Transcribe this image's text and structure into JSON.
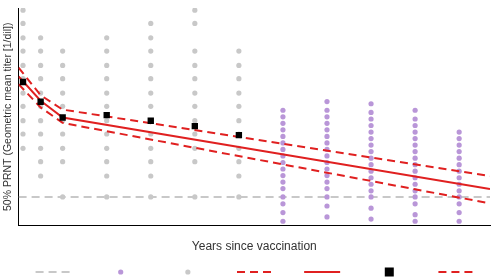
{
  "chart_data": {
    "type": "scatter",
    "x_label": "Years since vaccination",
    "y_label": "50% PRNT (Geometric mean titer [1/dil])",
    "xlim": [
      0,
      10.7
    ],
    "ylim": [
      0,
      10
    ],
    "xticks": [],
    "yticks": [],
    "grid": false,
    "tick_labels": false,
    "legend": "bottom",
    "series": [
      {
        "type": "line",
        "line_style": "dashed",
        "color": "#c8c8c8",
        "x": [
          0,
          10.7
        ],
        "values": [
          1.32,
          1.32
        ]
      },
      {
        "type": "scatter",
        "marker": "circle",
        "color": "#b996d8",
        "x": [
          6,
          6,
          6,
          6,
          6,
          6,
          6,
          6,
          6,
          6,
          6,
          6,
          6,
          6,
          6,
          6,
          6,
          7,
          7,
          7,
          7,
          7,
          7,
          7,
          7,
          7,
          7,
          7,
          7,
          7,
          7,
          7,
          7,
          7,
          8,
          8,
          8,
          8,
          8,
          8,
          8,
          8,
          8,
          8,
          8,
          8,
          8,
          8,
          8,
          8,
          8,
          9,
          9,
          9,
          9,
          9,
          9,
          9,
          9,
          9,
          9,
          9,
          9,
          9,
          9,
          9,
          9,
          9,
          10,
          10,
          10,
          10,
          10,
          10,
          10,
          10,
          10,
          10,
          10,
          10,
          10,
          10
        ],
        "values": [
          5.3,
          5.0,
          4.7,
          4.4,
          4.1,
          3.8,
          3.5,
          3.2,
          2.9,
          2.6,
          2.3,
          2.0,
          1.7,
          1.32,
          1.0,
          0.6,
          0.2,
          5.7,
          5.3,
          5.0,
          4.7,
          4.4,
          4.1,
          3.8,
          3.5,
          3.2,
          2.9,
          2.6,
          2.3,
          2.0,
          1.7,
          1.32,
          0.9,
          0.4,
          5.6,
          5.2,
          4.9,
          4.6,
          4.3,
          4.0,
          3.7,
          3.4,
          3.1,
          2.8,
          2.5,
          2.2,
          1.9,
          1.6,
          1.32,
          0.8,
          0.3,
          5.3,
          4.9,
          4.6,
          4.3,
          4.0,
          3.7,
          3.4,
          3.1,
          2.8,
          2.5,
          2.2,
          1.9,
          1.6,
          1.32,
          1.0,
          0.5,
          0.2,
          4.3,
          4.0,
          3.7,
          3.4,
          3.1,
          2.8,
          2.5,
          2.2,
          1.9,
          1.6,
          1.32,
          1.0,
          0.6,
          0.2
        ]
      },
      {
        "type": "scatter",
        "marker": "circle",
        "color": "#c8c8c8",
        "x": [
          0.1,
          0.1,
          0.1,
          0.1,
          0.1,
          0.1,
          0.1,
          0.1,
          0.1,
          0.1,
          0.1,
          0.5,
          0.5,
          0.5,
          0.5,
          0.5,
          0.5,
          0.5,
          0.5,
          0.5,
          0.5,
          0.5,
          1,
          1,
          1,
          1,
          1,
          1,
          1,
          1,
          1,
          1,
          2,
          2,
          2,
          2,
          2,
          2,
          2,
          2,
          2,
          2,
          2,
          2,
          3,
          3,
          3,
          3,
          3,
          3,
          3,
          3,
          3,
          3,
          3,
          3,
          3,
          4,
          4,
          4,
          4,
          4,
          4,
          4,
          4,
          4,
          4,
          4,
          4,
          5,
          5,
          5,
          5,
          5,
          5,
          5,
          5,
          5,
          5,
          5
        ],
        "values": [
          9.9,
          9.29,
          8.63,
          8.02,
          7.36,
          6.75,
          6.09,
          5.48,
          4.82,
          4.21,
          3.55,
          8.63,
          8.02,
          7.36,
          6.75,
          6.09,
          5.48,
          4.82,
          4.21,
          3.55,
          2.94,
          2.28,
          8.02,
          7.36,
          6.75,
          6.09,
          5.48,
          4.82,
          4.21,
          3.55,
          2.94,
          1.32,
          8.63,
          8.02,
          7.36,
          6.75,
          6.09,
          5.48,
          4.82,
          4.21,
          3.55,
          2.94,
          2.28,
          1.32,
          9.29,
          8.63,
          8.02,
          7.36,
          6.75,
          6.09,
          5.48,
          4.82,
          4.21,
          3.55,
          2.94,
          2.28,
          1.32,
          9.9,
          9.29,
          8.02,
          7.36,
          6.75,
          6.09,
          5.48,
          4.82,
          4.21,
          3.55,
          2.94,
          1.32,
          8.02,
          7.36,
          6.75,
          6.09,
          5.48,
          4.82,
          4.21,
          3.55,
          2.94,
          2.28,
          1.32
        ]
      },
      {
        "type": "line",
        "line_style": "dashed",
        "color": "#e02020",
        "x": [
          0,
          0.5,
          1,
          10.7
        ],
        "values": [
          7.26,
          5.99,
          5.33,
          2.28
        ]
      },
      {
        "type": "line",
        "line_style": "solid",
        "color": "#e02020",
        "x": [
          0,
          0.5,
          1,
          10.7
        ],
        "values": [
          6.85,
          5.74,
          4.97,
          1.68
        ]
      },
      {
        "type": "scatter",
        "marker": "square",
        "color": "#000000",
        "x": [
          0.1,
          0.5,
          1,
          2,
          3,
          4,
          5
        ],
        "values": [
          6.6,
          5.69,
          4.97,
          5.08,
          4.82,
          4.57,
          4.16
        ]
      },
      {
        "type": "line",
        "line_style": "dashed",
        "color": "#e02020",
        "x": [
          0,
          0.5,
          1,
          10.7
        ],
        "values": [
          6.5,
          5.43,
          4.72,
          1.02
        ]
      }
    ]
  }
}
